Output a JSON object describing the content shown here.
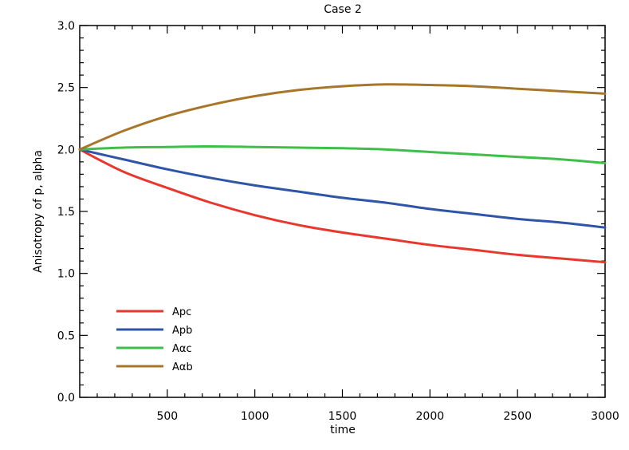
{
  "chart_data": {
    "type": "line",
    "title": "Case 2",
    "xlabel": "time",
    "ylabel": "Anisotropy of p, alpha",
    "xlim": [
      0,
      3000
    ],
    "ylim": [
      0.0,
      3.0
    ],
    "x_ticks": [
      500,
      1000,
      1500,
      2000,
      2500,
      3000
    ],
    "x_tick_labels": [
      "500",
      "1000",
      "1500",
      "2000",
      "2500",
      "3000"
    ],
    "y_ticks": [
      0.0,
      0.5,
      1.0,
      1.5,
      2.0,
      2.5,
      3.0
    ],
    "y_tick_labels": [
      "0.0",
      "0.5",
      "1.0",
      "1.5",
      "2.0",
      "2.5",
      "3.0"
    ],
    "legend_position": "bottom-left",
    "x": [
      0,
      250,
      500,
      750,
      1000,
      1250,
      1500,
      1750,
      2000,
      2250,
      2500,
      2750,
      3000
    ],
    "series": [
      {
        "name": "Apc",
        "color": "#e8372d",
        "values": [
          2.0,
          1.82,
          1.69,
          1.57,
          1.47,
          1.39,
          1.33,
          1.28,
          1.23,
          1.19,
          1.15,
          1.12,
          1.09
        ]
      },
      {
        "name": "Apb",
        "color": "#2f55a8",
        "values": [
          2.0,
          1.92,
          1.84,
          1.77,
          1.71,
          1.66,
          1.61,
          1.57,
          1.52,
          1.48,
          1.44,
          1.41,
          1.37
        ]
      },
      {
        "name": "Aαc",
        "color": "#3fbf4a",
        "values": [
          2.0,
          2.015,
          2.02,
          2.025,
          2.02,
          2.015,
          2.01,
          2.0,
          1.98,
          1.96,
          1.94,
          1.92,
          1.89
        ]
      },
      {
        "name": "Aαb",
        "color": "#a8762a",
        "values": [
          2.0,
          2.15,
          2.27,
          2.36,
          2.43,
          2.48,
          2.51,
          2.525,
          2.52,
          2.51,
          2.49,
          2.47,
          2.45
        ]
      }
    ]
  }
}
